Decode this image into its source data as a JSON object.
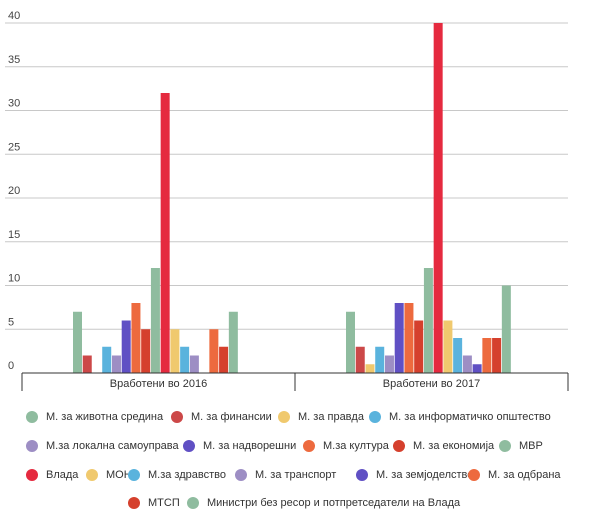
{
  "chart_data": {
    "type": "bar",
    "categories": [
      "Вработени во 2016",
      "Вработени во 2017"
    ],
    "ylim": [
      0,
      40
    ],
    "yticks": [
      0,
      5,
      10,
      15,
      20,
      25,
      30,
      35,
      40
    ],
    "grid": true,
    "legend_position": "bottom",
    "series": [
      {
        "name": "М. за животна средина",
        "color": "#8fbc9f",
        "values": [
          7,
          7
        ]
      },
      {
        "name": "М. за финансии",
        "color": "#cc4848",
        "values": [
          2,
          3
        ]
      },
      {
        "name": "М. за правда",
        "color": "#f0c96e",
        "values": [
          0,
          1
        ]
      },
      {
        "name": "М. за информатичко општество",
        "color": "#5ab3dd",
        "values": [
          3,
          3
        ]
      },
      {
        "name": "М.за локална самоуправа",
        "color": "#9d8ec4",
        "values": [
          2,
          2
        ]
      },
      {
        "name": "М. за надворешни",
        "color": "#6050c4",
        "values": [
          6,
          8
        ]
      },
      {
        "name": "М.за култура",
        "color": "#ed6a3e",
        "values": [
          8,
          8
        ]
      },
      {
        "name": "М. за економија",
        "color": "#d5402d",
        "values": [
          5,
          6
        ]
      },
      {
        "name": "МВР",
        "color": "#8fbc9f",
        "values": [
          12,
          12
        ]
      },
      {
        "name": "Влада",
        "color": "#e52a3f",
        "values": [
          32,
          40
        ]
      },
      {
        "name": "МОН",
        "color": "#f0c96e",
        "values": [
          5,
          6
        ]
      },
      {
        "name": "М.за здравство",
        "color": "#5ab3dd",
        "values": [
          3,
          4
        ]
      },
      {
        "name": "М. за транспорт",
        "color": "#9d8ec4",
        "values": [
          2,
          2
        ]
      },
      {
        "name": "М. за земјоделство",
        "color": "#6050c4",
        "values": [
          0,
          1
        ]
      },
      {
        "name": "М. за одбрана",
        "color": "#ed6a3e",
        "values": [
          5,
          4
        ]
      },
      {
        "name": "МТСП",
        "color": "#d5402d",
        "values": [
          3,
          4
        ]
      },
      {
        "name": "Министри без ресор и потпретседатели на Влада",
        "color": "#8fbc9f",
        "values": [
          7,
          10
        ]
      }
    ]
  }
}
